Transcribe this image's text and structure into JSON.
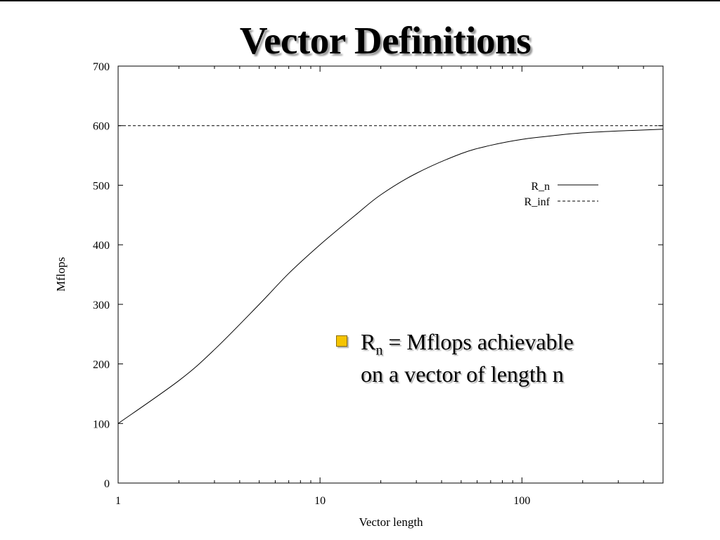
{
  "slide": {
    "title": "Vector Definitions",
    "bullet": {
      "symbol": "R",
      "subscript": "n",
      "line1_rest": " = Mflops achievable",
      "line2": "on a vector of length n",
      "marker_color": "#f5c400"
    }
  },
  "chart_data": {
    "type": "line",
    "xlabel": "Vector length",
    "ylabel": "Mflops",
    "xscale": "log",
    "xlim": [
      1,
      500
    ],
    "ylim": [
      0,
      700
    ],
    "xticks": [
      1,
      10,
      100
    ],
    "xtick_labels": [
      "1",
      "10",
      "100"
    ],
    "yticks": [
      0,
      100,
      200,
      300,
      400,
      500,
      600,
      700
    ],
    "ytick_labels": [
      "0",
      "100",
      "200",
      "300",
      "400",
      "500",
      "600",
      "700"
    ],
    "grid": false,
    "legend_position": "upper-right",
    "series": [
      {
        "name": "R_n",
        "style": "solid",
        "x": [
          1,
          2,
          3,
          5,
          7,
          10,
          15,
          20,
          30,
          50,
          70,
          100,
          150,
          200,
          300,
          500
        ],
        "y": [
          100,
          172,
          224,
          300,
          352,
          400,
          450,
          484,
          520,
          553,
          567,
          577,
          584,
          588,
          591,
          594
        ]
      },
      {
        "name": "R_inf",
        "style": "dashed",
        "x": [
          1,
          500
        ],
        "y": [
          600,
          600
        ]
      }
    ]
  }
}
